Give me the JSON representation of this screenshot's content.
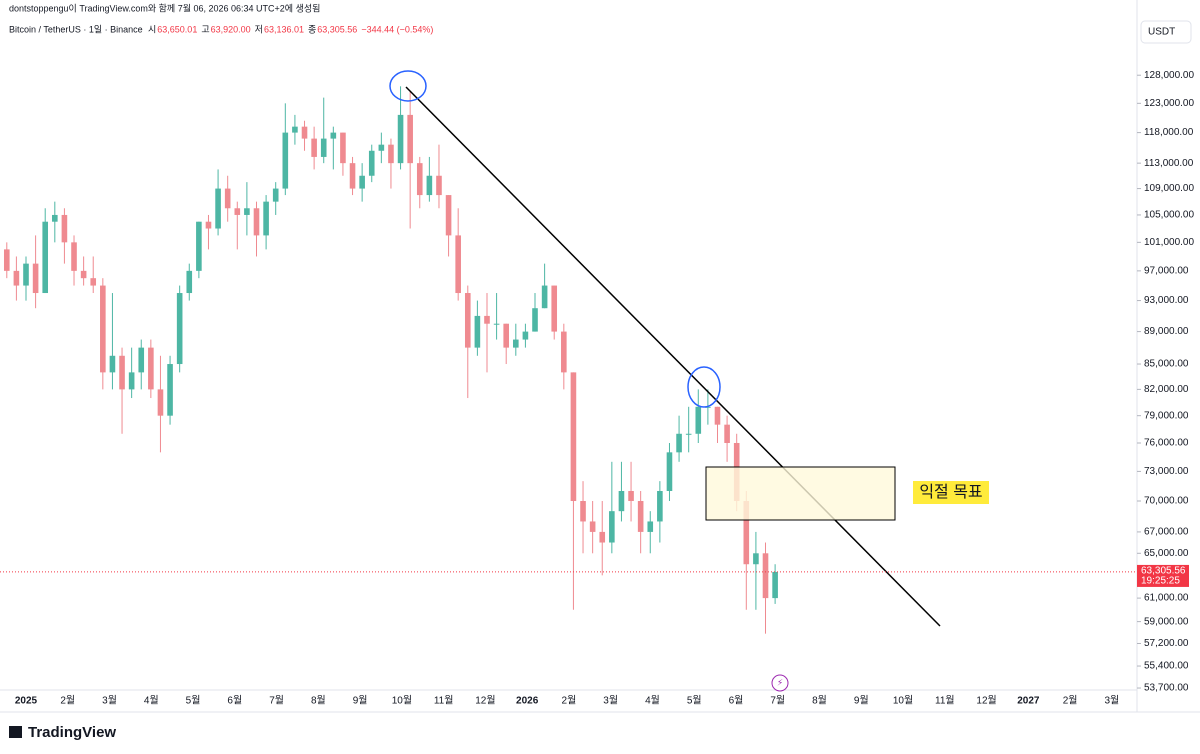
{
  "chart_data": {
    "type": "candlestick",
    "credit": "dontstoppengu이 TradingView.com와 함께 7월 06, 2026 06:34 UTC+2에 생성됨",
    "symbol": "Bitcoin / TetherUS · 1일 · Binance",
    "header_stats": [
      {
        "label": "시",
        "value": "63,650.01"
      },
      {
        "label": "고",
        "value": "63,920.00"
      },
      {
        "label": "저",
        "value": "63,136.01"
      },
      {
        "label": "종",
        "value": "63,305.56"
      }
    ],
    "change": "−344.44 (−0.54%)",
    "currency": "USDT",
    "brand": "TradingView",
    "annotation": "익절 목표",
    "log_scale": true,
    "up_color": "#4db6a4",
    "down_color": "#ef8a90",
    "ylim": [
      53550,
      142400
    ],
    "yticks": [
      {
        "value": 128000,
        "label": "128,000.00"
      },
      {
        "value": 123000,
        "label": "123,000.00"
      },
      {
        "value": 118000,
        "label": "118,000.00"
      },
      {
        "value": 113000,
        "label": "113,000.00"
      },
      {
        "value": 109000,
        "label": "109,000.00"
      },
      {
        "value": 105000,
        "label": "105,000.00"
      },
      {
        "value": 101000,
        "label": "101,000.00"
      },
      {
        "value": 97000,
        "label": "97,000.00"
      },
      {
        "value": 93000,
        "label": "93,000.00"
      },
      {
        "value": 89000,
        "label": "89,000.00"
      },
      {
        "value": 85000,
        "label": "85,000.00"
      },
      {
        "value": 82000,
        "label": "82,000.00"
      },
      {
        "value": 79000,
        "label": "79,000.00"
      },
      {
        "value": 76000,
        "label": "76,000.00"
      },
      {
        "value": 73000,
        "label": "73,000.00"
      },
      {
        "value": 70000,
        "label": "70,000.00"
      },
      {
        "value": 67000,
        "label": "67,000.00"
      },
      {
        "value": 65000,
        "label": "65,000.00"
      },
      {
        "value": 61000,
        "label": "61,000.00"
      },
      {
        "value": 59000,
        "label": "59,000.00"
      },
      {
        "value": 57200,
        "label": "57,200.00"
      },
      {
        "value": 55400,
        "label": "55,400.00"
      },
      {
        "value": 53700,
        "label": "53,700.00"
      }
    ],
    "last_price": {
      "value": 63305.56,
      "label": "63,305.56"
    },
    "countdown": "19:25:25",
    "xticks": [
      "2025",
      "2월",
      "3월",
      "4월",
      "5월",
      "6월",
      "7월",
      "8월",
      "9월",
      "10월",
      "11월",
      "12월",
      "2026",
      "2월",
      "3월",
      "4월",
      "5월",
      "6월",
      "7월",
      "8월",
      "9월",
      "10월",
      "11월",
      "12월",
      "2027",
      "2월",
      "3월"
    ],
    "ohlc": [
      [
        100000,
        101000,
        96000,
        97000
      ],
      [
        97000,
        99000,
        93000,
        95000
      ],
      [
        95000,
        99000,
        93000,
        98000
      ],
      [
        98000,
        102000,
        92000,
        94000
      ],
      [
        94000,
        106000,
        94000,
        104000
      ],
      [
        104000,
        107000,
        101000,
        105000
      ],
      [
        105000,
        106000,
        98000,
        101000
      ],
      [
        101000,
        102000,
        95000,
        97000
      ],
      [
        97000,
        99000,
        95000,
        96000
      ],
      [
        96000,
        99000,
        94000,
        95000
      ],
      [
        95000,
        96000,
        82000,
        84000
      ],
      [
        84000,
        94000,
        82000,
        86000
      ],
      [
        86000,
        87000,
        77000,
        82000
      ],
      [
        82000,
        87000,
        81000,
        84000
      ],
      [
        84000,
        88000,
        82000,
        87000
      ],
      [
        87000,
        88000,
        81000,
        82000
      ],
      [
        82000,
        86000,
        75000,
        79000
      ],
      [
        79000,
        86000,
        78000,
        85000
      ],
      [
        85000,
        95000,
        84000,
        94000
      ],
      [
        94000,
        98000,
        93000,
        97000
      ],
      [
        97000,
        104000,
        96000,
        104000
      ],
      [
        104000,
        105000,
        100000,
        103000
      ],
      [
        103000,
        112000,
        102000,
        109000
      ],
      [
        109000,
        111000,
        104000,
        106000
      ],
      [
        106000,
        107000,
        100000,
        105000
      ],
      [
        105000,
        110000,
        102000,
        106000
      ],
      [
        106000,
        107000,
        99000,
        102000
      ],
      [
        102000,
        108000,
        100000,
        107000
      ],
      [
        107000,
        110000,
        105000,
        109000
      ],
      [
        109000,
        123000,
        108000,
        118000
      ],
      [
        118000,
        121000,
        116000,
        119000
      ],
      [
        119000,
        120000,
        115000,
        117000
      ],
      [
        117000,
        119000,
        112000,
        114000
      ],
      [
        114000,
        124000,
        113000,
        117000
      ],
      [
        117000,
        119000,
        112000,
        118000
      ],
      [
        118000,
        118000,
        111000,
        113000
      ],
      [
        113000,
        114000,
        108000,
        109000
      ],
      [
        109000,
        113000,
        107000,
        111000
      ],
      [
        111000,
        116000,
        110000,
        115000
      ],
      [
        115000,
        118000,
        113000,
        116000
      ],
      [
        116000,
        117000,
        109000,
        113000
      ],
      [
        113000,
        126000,
        112000,
        121000
      ],
      [
        121000,
        125000,
        103000,
        113000
      ],
      [
        113000,
        114000,
        106000,
        108000
      ],
      [
        108000,
        114000,
        107000,
        111000
      ],
      [
        111000,
        116000,
        106000,
        108000
      ],
      [
        108000,
        108000,
        99000,
        102000
      ],
      [
        102000,
        106000,
        93000,
        94000
      ],
      [
        94000,
        95000,
        81000,
        87000
      ],
      [
        87000,
        93000,
        86000,
        91000
      ],
      [
        91000,
        94000,
        84000,
        90000
      ],
      [
        90000,
        94000,
        88000,
        90000
      ],
      [
        90000,
        90000,
        85000,
        87000
      ],
      [
        87000,
        90000,
        86000,
        88000
      ],
      [
        88000,
        90000,
        87000,
        89000
      ],
      [
        89000,
        94000,
        89000,
        92000
      ],
      [
        92000,
        98000,
        92000,
        95000
      ],
      [
        95000,
        95000,
        88000,
        89000
      ],
      [
        89000,
        90000,
        82000,
        84000
      ],
      [
        84000,
        84000,
        60000,
        70000
      ],
      [
        70000,
        72000,
        65000,
        68000
      ],
      [
        68000,
        70000,
        65000,
        67000
      ],
      [
        67000,
        70000,
        63000,
        66000
      ],
      [
        66000,
        74000,
        65000,
        69000
      ],
      [
        69000,
        74000,
        68000,
        71000
      ],
      [
        71000,
        74000,
        68000,
        70000
      ],
      [
        70000,
        71000,
        65000,
        67000
      ],
      [
        67000,
        69000,
        65000,
        68000
      ],
      [
        68000,
        72000,
        66000,
        71000
      ],
      [
        71000,
        76000,
        70000,
        75000
      ],
      [
        75000,
        79000,
        74000,
        77000
      ],
      [
        77000,
        80000,
        75000,
        77000
      ],
      [
        77000,
        82000,
        76000,
        80000
      ],
      [
        80000,
        82000,
        78000,
        80000
      ],
      [
        80000,
        80000,
        76000,
        78000
      ],
      [
        78000,
        79000,
        74000,
        76000
      ],
      [
        76000,
        77000,
        69000,
        70000
      ],
      [
        70000,
        71000,
        60000,
        64000
      ],
      [
        64000,
        67000,
        60000,
        65000
      ],
      [
        65000,
        66000,
        58000,
        61000
      ],
      [
        61000,
        64000,
        60500,
        63305.56
      ]
    ]
  }
}
